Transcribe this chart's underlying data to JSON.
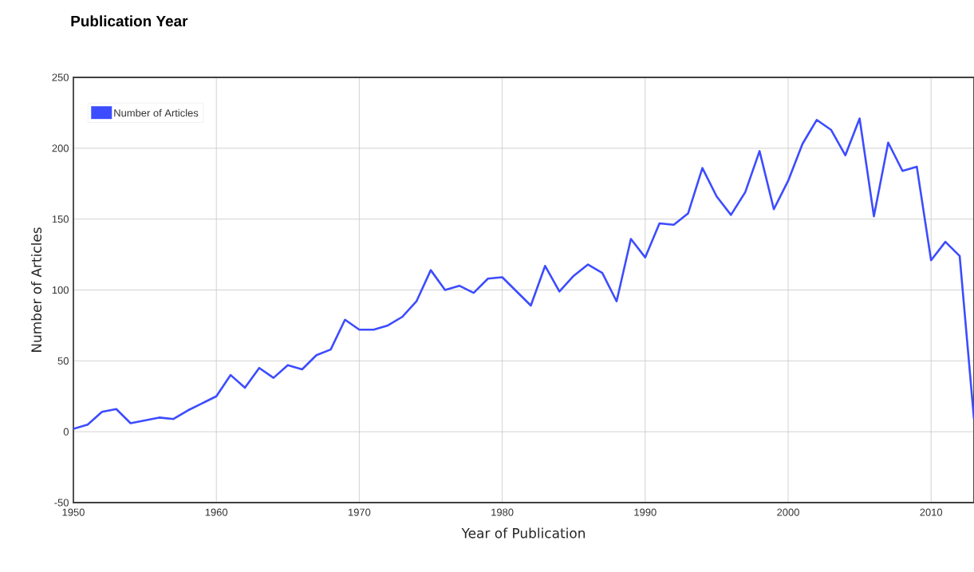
{
  "chart_data": {
    "type": "line",
    "title": "Publication Year",
    "xlabel": "Year of Publication",
    "ylabel": "Number of Articles",
    "x": [
      1950,
      1951,
      1952,
      1953,
      1954,
      1955,
      1956,
      1957,
      1958,
      1959,
      1960,
      1961,
      1962,
      1963,
      1964,
      1965,
      1966,
      1967,
      1968,
      1969,
      1970,
      1971,
      1972,
      1973,
      1974,
      1975,
      1976,
      1977,
      1978,
      1979,
      1980,
      1981,
      1982,
      1983,
      1984,
      1985,
      1986,
      1987,
      1988,
      1989,
      1990,
      1991,
      1992,
      1993,
      1994,
      1995,
      1996,
      1997,
      1998,
      1999,
      2000,
      2001,
      2002,
      2003,
      2004,
      2005,
      2006,
      2007,
      2008,
      2009,
      2010,
      2011,
      2012,
      2013
    ],
    "series": [
      {
        "name": "Number of Articles",
        "color": "#3c4cff",
        "values": [
          2,
          5,
          14,
          16,
          6,
          8,
          10,
          9,
          15,
          20,
          25,
          40,
          31,
          45,
          38,
          47,
          44,
          54,
          58,
          79,
          72,
          72,
          75,
          81,
          92,
          114,
          100,
          103,
          98,
          108,
          109,
          99,
          89,
          117,
          99,
          110,
          118,
          112,
          92,
          136,
          123,
          147,
          146,
          154,
          186,
          166,
          153,
          169,
          198,
          157,
          177,
          203,
          220,
          213,
          195,
          221,
          152,
          204,
          184,
          187,
          121,
          134,
          124,
          9
        ]
      }
    ],
    "xlim": [
      1950,
      2013
    ],
    "ylim": [
      -50,
      250
    ],
    "xticks": [
      1950,
      1960,
      1970,
      1980,
      1990,
      2000,
      2010
    ],
    "yticks": [
      -50,
      0,
      50,
      100,
      150,
      200,
      250
    ],
    "grid": true,
    "legend": "top left"
  }
}
